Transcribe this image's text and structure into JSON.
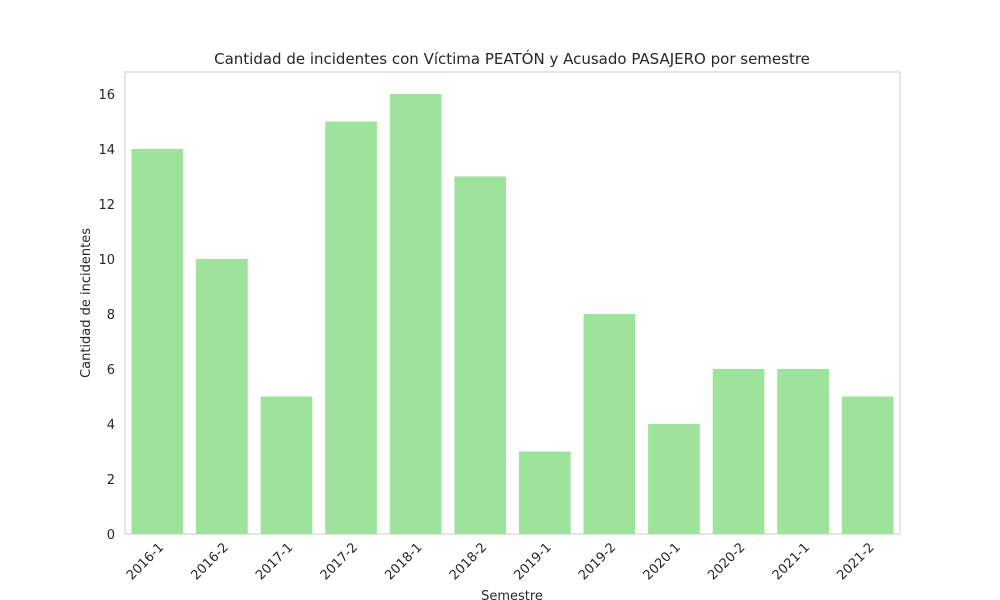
{
  "chart_data": {
    "type": "bar",
    "title": "Cantidad de incidentes con Víctima PEATÓN y Acusado PASAJERO por semestre",
    "xlabel": "Semestre",
    "ylabel": "Cantidad de incidentes",
    "categories": [
      "2016-1",
      "2016-2",
      "2017-1",
      "2017-2",
      "2018-1",
      "2018-2",
      "2019-1",
      "2019-2",
      "2020-1",
      "2020-2",
      "2021-1",
      "2021-2"
    ],
    "values": [
      14,
      10,
      5,
      15,
      16,
      13,
      3,
      8,
      4,
      6,
      6,
      5
    ],
    "yticks": [
      "0",
      "2",
      "4",
      "6",
      "8",
      "10",
      "12",
      "14",
      "16"
    ],
    "ylim": [
      0,
      16.8
    ],
    "grid": false,
    "bar_color": "#9de39b",
    "spine_color": "#cccccc"
  }
}
